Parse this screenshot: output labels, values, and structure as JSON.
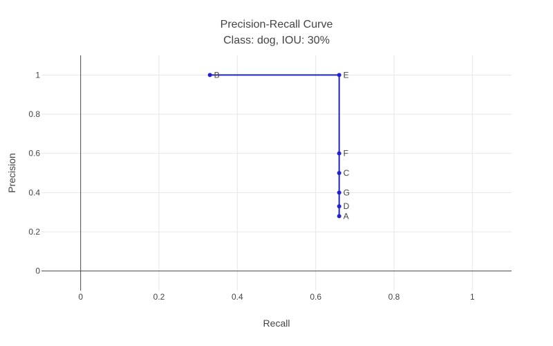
{
  "chart_data": {
    "type": "line",
    "title": "Precision-Recall Curve",
    "subtitle": "Class: dog, IOU: 30%",
    "xlabel": "Recall",
    "ylabel": "Precision",
    "xlim": [
      -0.1,
      1.1
    ],
    "ylim": [
      -0.1,
      1.1
    ],
    "xticks": [
      0,
      0.2,
      0.4,
      0.6,
      0.8,
      1
    ],
    "xtick_labels": [
      "0",
      "0.2",
      "0.4",
      "0.6",
      "0.8",
      "1"
    ],
    "yticks": [
      0,
      0.2,
      0.4,
      0.6,
      0.8,
      1
    ],
    "ytick_labels": [
      "0",
      "0.2",
      "0.4",
      "0.6",
      "0.8",
      "1"
    ],
    "grid": true,
    "line_color": "#2222cc",
    "series": [
      {
        "points": [
          {
            "label": "A",
            "x": 0.66,
            "y": 0.28
          },
          {
            "label": "D",
            "x": 0.66,
            "y": 0.33
          },
          {
            "label": "G",
            "x": 0.66,
            "y": 0.4
          },
          {
            "label": "C",
            "x": 0.66,
            "y": 0.5
          },
          {
            "label": "F",
            "x": 0.66,
            "y": 0.6
          },
          {
            "label": "E",
            "x": 0.66,
            "y": 1.0
          },
          {
            "label": "B",
            "x": 0.33,
            "y": 1.0
          }
        ]
      }
    ]
  }
}
